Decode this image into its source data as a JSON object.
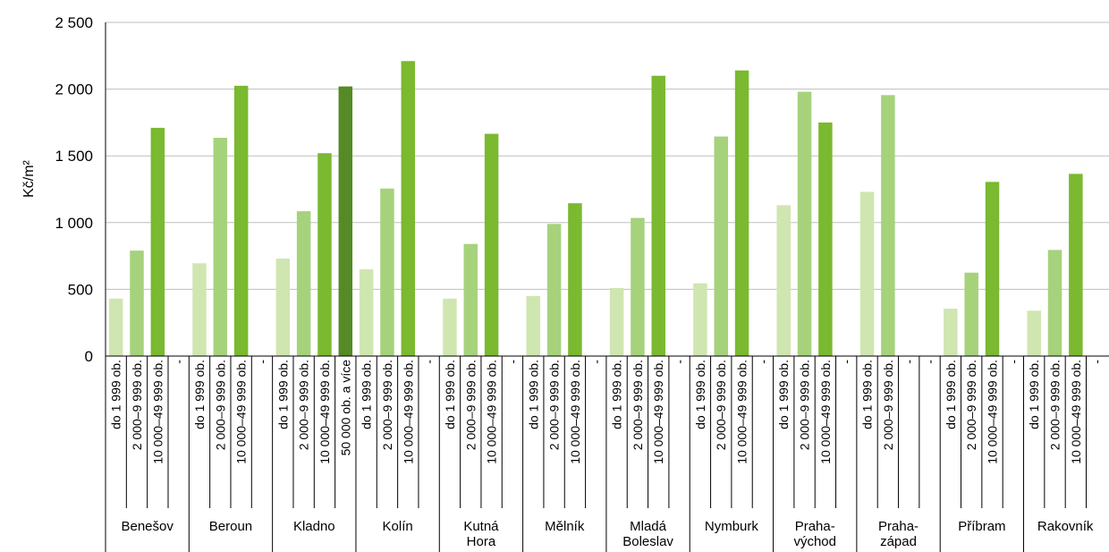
{
  "chart_data": {
    "type": "bar",
    "ylabel": "Kč/m²",
    "ylim": [
      0,
      2500
    ],
    "yticks": [
      0,
      500,
      1000,
      1500,
      2000,
      2500
    ],
    "ytick_labels": [
      "0",
      "500",
      "1 000",
      "1 500",
      "2 000",
      "2 500"
    ],
    "grid": true,
    "groups": [
      {
        "name": "Benešov",
        "slots": [
          {
            "label": "do 1 999 ob.",
            "value": 430
          },
          {
            "label": "2 000–9 999 ob.",
            "value": 790
          },
          {
            "label": "10 000–49 999 ob.",
            "value": 1710
          },
          {
            "label": "-",
            "value": null
          }
        ]
      },
      {
        "name": "Beroun",
        "slots": [
          {
            "label": "do 1 999 ob.",
            "value": 695
          },
          {
            "label": "2 000–9 999 ob.",
            "value": 1635
          },
          {
            "label": "10 000–49 999 ob.",
            "value": 2025
          },
          {
            "label": "-",
            "value": null
          }
        ]
      },
      {
        "name": "Kladno",
        "slots": [
          {
            "label": "do 1 999 ob.",
            "value": 730
          },
          {
            "label": "2 000–9 999 ob.",
            "value": 1085
          },
          {
            "label": "10 000–49 999 ob.",
            "value": 1520
          },
          {
            "label": "50 000 ob. a více",
            "value": 2020
          }
        ]
      },
      {
        "name": "Kolín",
        "slots": [
          {
            "label": "do 1 999 ob.",
            "value": 650
          },
          {
            "label": "2 000–9 999 ob.",
            "value": 1255
          },
          {
            "label": "10 000–49 999 ob.",
            "value": 2210
          },
          {
            "label": "-",
            "value": null
          }
        ]
      },
      {
        "name": "Kutná Hora",
        "slots": [
          {
            "label": "do 1 999 ob.",
            "value": 430
          },
          {
            "label": "2 000–9 999 ob.",
            "value": 840
          },
          {
            "label": "10 000–49 999 ob.",
            "value": 1665
          },
          {
            "label": "-",
            "value": null
          }
        ]
      },
      {
        "name": "Mělník",
        "slots": [
          {
            "label": "do 1 999 ob.",
            "value": 450
          },
          {
            "label": "2 000–9 999 ob.",
            "value": 990
          },
          {
            "label": "10 000–49 999 ob.",
            "value": 1145
          },
          {
            "label": "-",
            "value": null
          }
        ]
      },
      {
        "name": "Mladá Boleslav",
        "slots": [
          {
            "label": "do 1 999 ob.",
            "value": 510
          },
          {
            "label": "2 000–9 999 ob.",
            "value": 1035
          },
          {
            "label": "10 000–49 999 ob.",
            "value": 2100
          },
          {
            "label": "-",
            "value": null
          }
        ]
      },
      {
        "name": "Nymburk",
        "slots": [
          {
            "label": "do 1 999 ob.",
            "value": 545
          },
          {
            "label": "2 000–9 999 ob.",
            "value": 1645
          },
          {
            "label": "10 000–49 999 ob.",
            "value": 2140
          },
          {
            "label": "-",
            "value": null
          }
        ]
      },
      {
        "name": "Praha-východ",
        "slots": [
          {
            "label": "do 1 999 ob.",
            "value": 1130
          },
          {
            "label": "2 000–9 999 ob.",
            "value": 1980
          },
          {
            "label": "10 000–49 999 ob.",
            "value": 1750
          },
          {
            "label": "-",
            "value": null
          }
        ]
      },
      {
        "name": "Praha-západ",
        "slots": [
          {
            "label": "do 1 999 ob.",
            "value": 1230
          },
          {
            "label": "2 000–9 999 ob.",
            "value": 1955
          },
          {
            "label": "-",
            "value": null
          },
          {
            "label": "-",
            "value": null
          }
        ]
      },
      {
        "name": "Příbram",
        "slots": [
          {
            "label": "do 1 999 ob.",
            "value": 355
          },
          {
            "label": "2 000–9 999 ob.",
            "value": 625
          },
          {
            "label": "10 000–49 999 ob.",
            "value": 1305
          },
          {
            "label": "-",
            "value": null
          }
        ]
      },
      {
        "name": "Rakovník",
        "slots": [
          {
            "label": "do 1 999 ob.",
            "value": 340
          },
          {
            "label": "2 000–9 999 ob.",
            "value": 795
          },
          {
            "label": "10 000–49 999 ob.",
            "value": 1365
          },
          {
            "label": "-",
            "value": null
          }
        ]
      }
    ],
    "colors": {
      "do 1 999 ob.": "#cfe6b1",
      "2 000–9 999 ob.": "#a6d27c",
      "10 000–49 999 ob.": "#7ab930",
      "50 000 ob. a více": "#558a26",
      "grid": "#bfbfbf",
      "axis": "#000000"
    }
  }
}
